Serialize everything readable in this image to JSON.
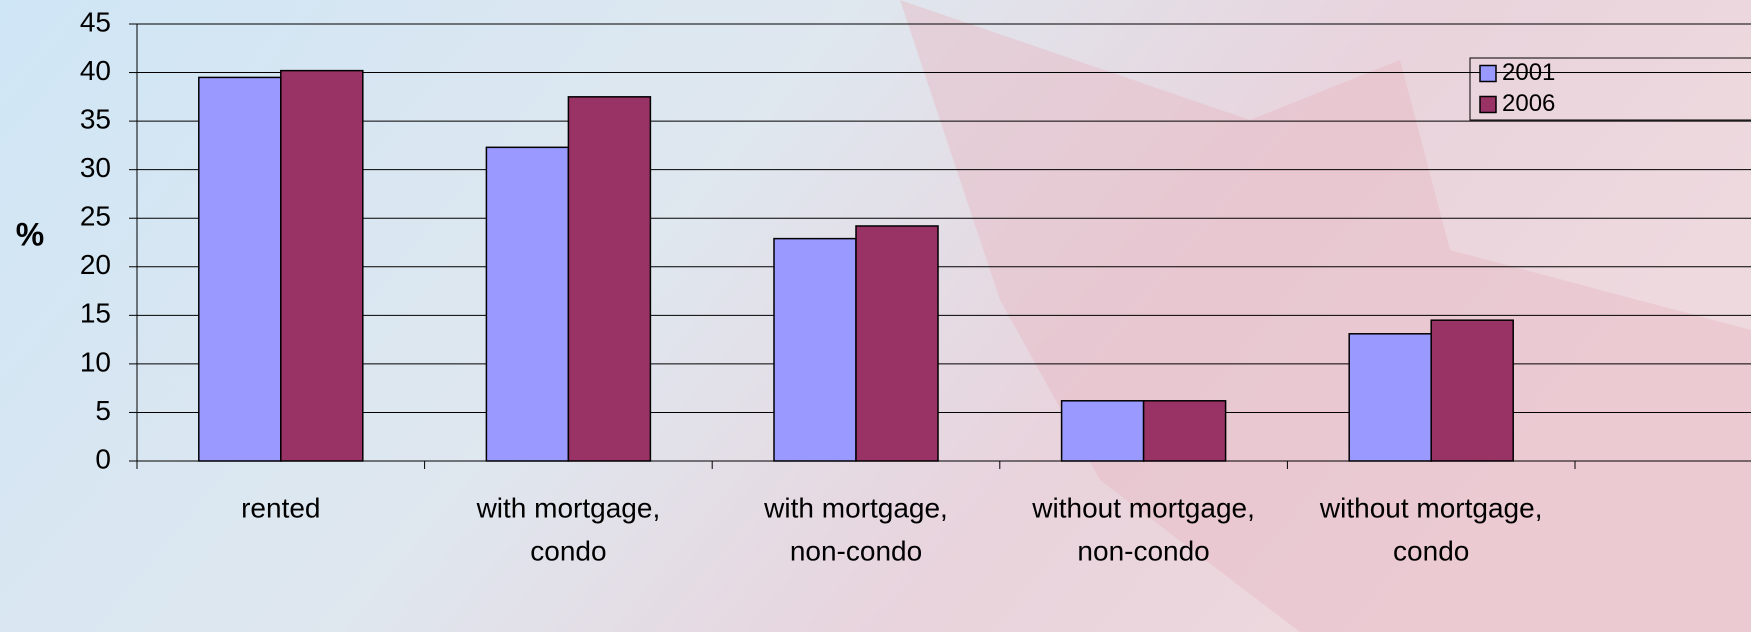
{
  "chart_data": {
    "type": "bar",
    "y_label": "%",
    "categories": [
      [
        "rented"
      ],
      [
        "with mortgage,",
        "condo"
      ],
      [
        "with mortgage,",
        "non-condo"
      ],
      [
        "without mortgage,",
        "non-condo"
      ],
      [
        "without mortgage,",
        "condo"
      ]
    ],
    "series": [
      {
        "name": "2001",
        "color": "#9999ff",
        "values": [
          39.5,
          32.3,
          22.9,
          6.2,
          13.1
        ]
      },
      {
        "name": "2006",
        "color": "#993366",
        "values": [
          40.2,
          37.5,
          24.2,
          6.2,
          14.5
        ]
      }
    ],
    "ylim": [
      0,
      45
    ],
    "yticks": [
      0,
      5,
      10,
      15,
      20,
      25,
      30,
      35,
      40,
      45
    ],
    "grid": true,
    "legend": "top-right"
  }
}
